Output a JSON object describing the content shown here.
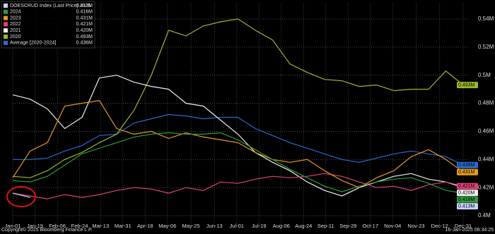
{
  "chart_data": {
    "type": "line",
    "x": [
      1,
      15,
      29,
      43,
      57,
      71,
      85,
      99,
      113,
      127,
      141,
      155,
      169,
      183,
      197,
      211,
      225,
      239,
      253,
      267,
      281,
      295,
      309,
      323,
      337,
      351,
      365
    ],
    "xlim": [
      1,
      365
    ],
    "xticks": [
      {
        "value": 1,
        "label": "Jan-01"
      },
      {
        "value": 19,
        "label": "Jan-19"
      },
      {
        "value": 37,
        "label": "Feb-06"
      },
      {
        "value": 55,
        "label": "Feb-24"
      },
      {
        "value": 72,
        "label": "Mar-13"
      },
      {
        "value": 90,
        "label": "Mar-31"
      },
      {
        "value": 108,
        "label": "Apr-18"
      },
      {
        "value": 126,
        "label": "May-06"
      },
      {
        "value": 145,
        "label": "May-25"
      },
      {
        "value": 164,
        "label": "Jun-13"
      },
      {
        "value": 182,
        "label": "Jul-01"
      },
      {
        "value": 200,
        "label": "Jul-19"
      },
      {
        "value": 218,
        "label": "Aug-06"
      },
      {
        "value": 236,
        "label": "Aug-24"
      },
      {
        "value": 254,
        "label": "Sep-11"
      },
      {
        "value": 272,
        "label": "Sep-29"
      },
      {
        "value": 290,
        "label": "Oct-17"
      },
      {
        "value": 308,
        "label": "Nov-04"
      },
      {
        "value": 327,
        "label": "Nov-23"
      },
      {
        "value": 346,
        "label": "Dec-12"
      },
      {
        "value": 365,
        "label": "Dec-31"
      }
    ],
    "ylim": [
      0.394,
      0.551
    ],
    "yticks": [
      {
        "value": 0.4,
        "label": "0.4M"
      },
      {
        "value": 0.42,
        "label": "0.42M"
      },
      {
        "value": 0.44,
        "label": "0.44M"
      },
      {
        "value": 0.46,
        "label": "0.46M"
      },
      {
        "value": 0.48,
        "label": "0.48M"
      },
      {
        "value": 0.5,
        "label": "0.5M"
      },
      {
        "value": 0.52,
        "label": "0.52M"
      },
      {
        "value": 0.54,
        "label": "0.54M"
      }
    ],
    "grid": true,
    "legend": "top-left",
    "series": [
      {
        "name": "DOESCRUD Index (Last Price) 2025",
        "color": "#c9d2ff",
        "last_label": "0.413M",
        "last_index": 1,
        "values": [
          0.416,
          0.413,
          null,
          null,
          null,
          null,
          null,
          null,
          null,
          null,
          null,
          null,
          null,
          null,
          null,
          null,
          null,
          null,
          null,
          null,
          null,
          null,
          null,
          null,
          null,
          null,
          null
        ]
      },
      {
        "name": "2024",
        "color": "#2f9a3a",
        "last_label": "0.416M",
        "last_index": 26,
        "values": [
          0.425,
          0.424,
          0.428,
          0.436,
          0.444,
          0.448,
          0.452,
          0.456,
          0.458,
          0.459,
          0.458,
          0.458,
          0.459,
          0.454,
          0.447,
          0.44,
          0.433,
          0.427,
          0.421,
          0.417,
          0.421,
          0.424,
          0.426,
          0.427,
          0.423,
          0.418,
          0.416
        ]
      },
      {
        "name": "2023",
        "color": "#e89a1e",
        "last_label": "0.431M",
        "last_index": 26,
        "values": [
          0.427,
          0.446,
          0.452,
          0.478,
          0.48,
          0.482,
          0.462,
          0.458,
          0.46,
          0.455,
          0.459,
          0.456,
          0.454,
          0.452,
          0.445,
          0.44,
          0.438,
          0.44,
          0.432,
          0.425,
          0.42,
          0.427,
          0.432,
          0.442,
          0.447,
          0.44,
          0.431
        ]
      },
      {
        "name": "2022",
        "color": "#e0407a",
        "last_label": "0.421M",
        "last_index": 26,
        "values": [
          0.416,
          0.414,
          0.412,
          0.415,
          0.413,
          0.415,
          0.418,
          0.42,
          0.419,
          0.416,
          0.42,
          0.418,
          0.424,
          0.423,
          0.426,
          0.428,
          0.427,
          0.428,
          0.43,
          0.428,
          0.424,
          0.42,
          0.421,
          0.418,
          0.422,
          0.424,
          0.421
        ]
      },
      {
        "name": "2021",
        "color": "#eeeeee",
        "last_label": "0.420M",
        "last_index": 26,
        "values": [
          0.486,
          0.483,
          0.476,
          0.462,
          0.47,
          0.498,
          0.5,
          0.495,
          0.492,
          0.49,
          0.48,
          0.478,
          0.468,
          0.458,
          0.445,
          0.438,
          0.432,
          0.424,
          0.418,
          0.414,
          0.42,
          0.424,
          0.428,
          0.43,
          0.426,
          0.424,
          0.42
        ]
      },
      {
        "name": "2020",
        "color": "#9ab82a",
        "last_label": "0.493M",
        "last_index": 26,
        "values": [
          0.428,
          0.427,
          0.432,
          0.44,
          0.445,
          0.452,
          0.458,
          0.475,
          0.5,
          0.532,
          0.528,
          0.535,
          0.538,
          0.54,
          0.532,
          0.525,
          0.508,
          0.502,
          0.497,
          0.496,
          0.492,
          0.493,
          0.489,
          0.49,
          0.49,
          0.503,
          0.493
        ]
      },
      {
        "name": "Average  [2020-2024]",
        "color": "#2a6ad0",
        "last_label": "0.436M",
        "last_index": 26,
        "values": [
          0.44,
          0.44,
          0.441,
          0.446,
          0.45,
          0.457,
          0.458,
          0.466,
          0.469,
          0.472,
          0.471,
          0.469,
          0.47,
          0.47,
          0.462,
          0.457,
          0.452,
          0.448,
          0.444,
          0.44,
          0.438,
          0.441,
          0.444,
          0.446,
          0.444,
          0.442,
          0.436
        ]
      }
    ]
  },
  "footer": {
    "copyright": "Copyright© 2025 Bloomberg Finance L.P.",
    "timestamp": "16-Jan-2025 08:34:25"
  }
}
